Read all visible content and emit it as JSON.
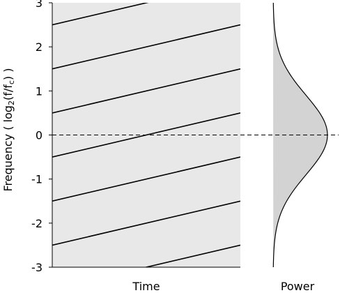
{
  "chart_data": {
    "type": "diagram",
    "panels": [
      "spectrogram",
      "power"
    ],
    "y_axis": {
      "label_prefix": "Frequency ( log",
      "label_sub": "2",
      "label_mid": "(f/f",
      "label_sub2": "c",
      "label_suffix": ") )",
      "range": [
        -3,
        3
      ],
      "ticks": [
        {
          "value": 3,
          "label": "3"
        },
        {
          "value": 2,
          "label": "2"
        },
        {
          "value": 1,
          "label": "1"
        },
        {
          "value": 0,
          "label": "0"
        },
        {
          "value": -1,
          "label": "-1"
        },
        {
          "value": -2,
          "label": "-2"
        },
        {
          "value": -3,
          "label": "-3"
        }
      ]
    },
    "time_label": "Time",
    "power_label": "Power",
    "time_range": [
      0,
      1
    ],
    "glide_lines": {
      "slope_octaves_per_time": 1,
      "offsets": [
        2.5,
        1.5,
        0.5,
        -0.5,
        -1.5,
        -2.5,
        -3.5
      ]
    },
    "power_envelope": {
      "shape": "gaussian",
      "center": 0,
      "sigma_octaves": 0.9
    },
    "reference_line": {
      "y": 0,
      "style": "dashed"
    },
    "colors": {
      "panel_fill": "#e8e8e8",
      "power_fill": "#d3d3d3",
      "line": "#000000"
    }
  }
}
